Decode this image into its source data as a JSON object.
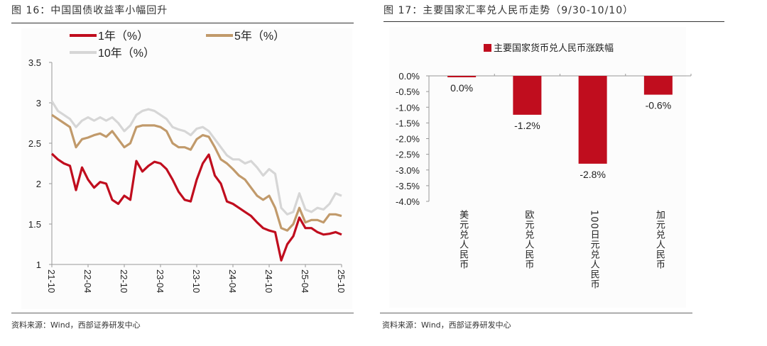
{
  "left": {
    "title": "图 16：中国国债收益率小幅回升",
    "source": "资料来源：Wind，西部证券研发中心"
  },
  "right": {
    "title": "图 17：主要国家汇率兑人民币走势（9/30-10/10）",
    "source": "资料来源：Wind，西部证券研发中心"
  },
  "chart_data": [
    {
      "type": "line",
      "title": "中国国债收益率小幅回升",
      "ylim": [
        1,
        3.5
      ],
      "yticks": [
        "3.5",
        "3",
        "2.5",
        "2",
        "1.5",
        "1"
      ],
      "xticks": [
        "21-10",
        "22-04",
        "22-10",
        "23-04",
        "23-10",
        "24-04",
        "24-10",
        "25-04",
        "25-10"
      ],
      "x_note": "monthly samples from 21-10 to 25-10",
      "legend_position": "top",
      "series": [
        {
          "name": "1年（%）",
          "color": "#c00d1e",
          "values": [
            2.37,
            2.3,
            2.25,
            2.22,
            1.92,
            2.2,
            2.05,
            1.95,
            2.02,
            2.0,
            1.8,
            1.75,
            1.85,
            1.8,
            2.28,
            2.15,
            2.22,
            2.27,
            2.25,
            2.18,
            2.05,
            1.9,
            1.8,
            1.78,
            2.05,
            2.25,
            2.36,
            2.1,
            2.0,
            1.78,
            1.75,
            1.7,
            1.65,
            1.6,
            1.52,
            1.45,
            1.42,
            1.4,
            1.05,
            1.25,
            1.35,
            1.58,
            1.45,
            1.45,
            1.4,
            1.37,
            1.38,
            1.4,
            1.37
          ]
        },
        {
          "name": "5年（%）",
          "color": "#c19a6b",
          "values": [
            2.85,
            2.8,
            2.75,
            2.7,
            2.45,
            2.55,
            2.57,
            2.6,
            2.62,
            2.58,
            2.65,
            2.55,
            2.45,
            2.5,
            2.7,
            2.72,
            2.72,
            2.72,
            2.7,
            2.65,
            2.5,
            2.45,
            2.45,
            2.42,
            2.55,
            2.6,
            2.58,
            2.45,
            2.3,
            2.25,
            2.18,
            2.1,
            2.05,
            1.95,
            1.85,
            1.8,
            1.85,
            1.7,
            1.45,
            1.42,
            1.5,
            1.7,
            1.52,
            1.55,
            1.55,
            1.52,
            1.62,
            1.62,
            1.6
          ]
        },
        {
          "name": "10年（%）",
          "color": "#d6d6d6",
          "values": [
            3.02,
            2.9,
            2.85,
            2.8,
            2.7,
            2.78,
            2.82,
            2.78,
            2.82,
            2.78,
            2.82,
            2.75,
            2.65,
            2.72,
            2.85,
            2.9,
            2.92,
            2.9,
            2.85,
            2.8,
            2.7,
            2.67,
            2.65,
            2.6,
            2.68,
            2.7,
            2.65,
            2.55,
            2.45,
            2.35,
            2.3,
            2.3,
            2.25,
            2.28,
            2.2,
            2.1,
            2.18,
            2.12,
            1.7,
            1.62,
            1.65,
            1.88,
            1.68,
            1.65,
            1.7,
            1.68,
            1.75,
            1.88,
            1.85
          ]
        }
      ]
    },
    {
      "type": "bar",
      "title": "主要国家汇率兑人民币走势（9/30-10/10）",
      "legend": "主要国家货币兑人民币涨跌幅",
      "legend_position": "top",
      "color": "#c00d1e",
      "ylim": [
        -4.0,
        0.0
      ],
      "yticks": [
        "0.0%",
        "-0.5%",
        "-1.0%",
        "-1.5%",
        "-2.0%",
        "-2.5%",
        "-3.0%",
        "-3.5%",
        "-4.0%"
      ],
      "categories": [
        "美元兑人民币",
        "欧元兑人民币",
        "100日元兑人民币",
        "加元兑人民币"
      ],
      "values": [
        -0.04,
        -1.24,
        -2.8,
        -0.6
      ],
      "labels": [
        "0.0%",
        "-1.2%",
        "-2.8%",
        "-0.6%"
      ]
    }
  ]
}
